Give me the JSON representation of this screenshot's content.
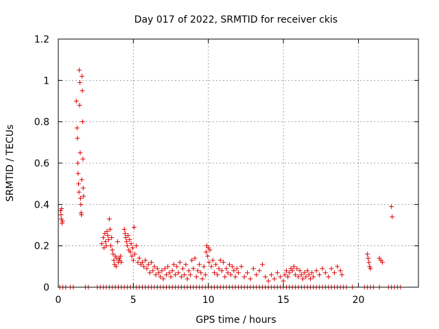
{
  "chart_data": {
    "type": "scatter",
    "title": "Day 017 of 2022, SRMTID for receiver ckis",
    "xlabel": "GPS time / hours",
    "ylabel": "SRMTID / TECUs",
    "xlim": [
      0,
      24
    ],
    "ylim": [
      0,
      1.2
    ],
    "x_ticks": [
      0,
      5,
      10,
      15,
      20
    ],
    "x_tick_labels": [
      "0",
      "5",
      "10",
      "15",
      "20"
    ],
    "y_ticks": [
      0,
      0.2,
      0.4,
      0.6,
      0.8,
      1.0,
      1.2
    ],
    "y_tick_labels": [
      "0",
      "0.2",
      "0.4",
      "0.6",
      "0.8",
      "1",
      "1.2"
    ],
    "grid": true,
    "marker": "+",
    "series": [
      {
        "name": "SRMTID",
        "color": "#dd0000",
        "points": [
          [
            0.15,
            0.37
          ],
          [
            0.18,
            0.35
          ],
          [
            0.2,
            0.33
          ],
          [
            0.22,
            0.38
          ],
          [
            0.25,
            0.31
          ],
          [
            0.28,
            0.32
          ],
          [
            1.2,
            0.9
          ],
          [
            1.25,
            0.77
          ],
          [
            1.28,
            0.72
          ],
          [
            1.3,
            0.6
          ],
          [
            1.32,
            0.55
          ],
          [
            1.35,
            0.5
          ],
          [
            1.38,
            0.46
          ],
          [
            1.4,
            1.05
          ],
          [
            1.42,
            0.88
          ],
          [
            1.44,
            0.99
          ],
          [
            1.46,
            0.65
          ],
          [
            1.48,
            0.43
          ],
          [
            1.5,
            0.4
          ],
          [
            1.52,
            0.36
          ],
          [
            1.54,
            0.35
          ],
          [
            1.56,
            0.52
          ],
          [
            1.58,
            1.02
          ],
          [
            1.6,
            0.95
          ],
          [
            1.62,
            0.8
          ],
          [
            1.64,
            0.62
          ],
          [
            1.66,
            0.48
          ],
          [
            1.68,
            0.44
          ],
          [
            2.9,
            0.21
          ],
          [
            3.0,
            0.24
          ],
          [
            3.05,
            0.19
          ],
          [
            3.1,
            0.26
          ],
          [
            3.15,
            0.22
          ],
          [
            3.2,
            0.2
          ],
          [
            3.25,
            0.27
          ],
          [
            3.3,
            0.25
          ],
          [
            3.35,
            0.23
          ],
          [
            3.4,
            0.33
          ],
          [
            3.45,
            0.28
          ],
          [
            3.5,
            0.2
          ],
          [
            3.55,
            0.24
          ],
          [
            3.6,
            0.18
          ],
          [
            3.65,
            0.16
          ],
          [
            3.7,
            0.13
          ],
          [
            3.75,
            0.11
          ],
          [
            3.8,
            0.15
          ],
          [
            3.85,
            0.1
          ],
          [
            3.9,
            0.14
          ],
          [
            3.95,
            0.22
          ],
          [
            4.0,
            0.12
          ],
          [
            4.05,
            0.14
          ],
          [
            4.1,
            0.13
          ],
          [
            4.15,
            0.15
          ],
          [
            4.2,
            0.12
          ],
          [
            4.4,
            0.28
          ],
          [
            4.45,
            0.26
          ],
          [
            4.5,
            0.24
          ],
          [
            4.55,
            0.22
          ],
          [
            4.6,
            0.2
          ],
          [
            4.65,
            0.25
          ],
          [
            4.7,
            0.18
          ],
          [
            4.75,
            0.23
          ],
          [
            4.8,
            0.17
          ],
          [
            4.85,
            0.21
          ],
          [
            4.9,
            0.15
          ],
          [
            4.95,
            0.19
          ],
          [
            5.0,
            0.13
          ],
          [
            5.05,
            0.29
          ],
          [
            5.1,
            0.16
          ],
          [
            5.2,
            0.2
          ],
          [
            5.3,
            0.12
          ],
          [
            5.4,
            0.14
          ],
          [
            5.5,
            0.11
          ],
          [
            5.6,
            0.12
          ],
          [
            5.7,
            0.1
          ],
          [
            5.8,
            0.13
          ],
          [
            5.9,
            0.09
          ],
          [
            6.0,
            0.11
          ],
          [
            6.1,
            0.07
          ],
          [
            6.2,
            0.12
          ],
          [
            6.3,
            0.08
          ],
          [
            6.4,
            0.1
          ],
          [
            6.5,
            0.06
          ],
          [
            6.6,
            0.09
          ],
          [
            6.7,
            0.07
          ],
          [
            6.8,
            0.05
          ],
          [
            6.9,
            0.08
          ],
          [
            7.0,
            0.04
          ],
          [
            7.1,
            0.09
          ],
          [
            7.2,
            0.06
          ],
          [
            7.3,
            0.1
          ],
          [
            7.4,
            0.07
          ],
          [
            7.5,
            0.05
          ],
          [
            7.6,
            0.08
          ],
          [
            7.7,
            0.11
          ],
          [
            7.8,
            0.06
          ],
          [
            7.9,
            0.1
          ],
          [
            8.0,
            0.07
          ],
          [
            8.1,
            0.12
          ],
          [
            8.2,
            0.05
          ],
          [
            8.3,
            0.09
          ],
          [
            8.4,
            0.06
          ],
          [
            8.5,
            0.11
          ],
          [
            8.6,
            0.04
          ],
          [
            8.7,
            0.08
          ],
          [
            8.8,
            0.06
          ],
          [
            8.9,
            0.13
          ],
          [
            9.0,
            0.09
          ],
          [
            9.1,
            0.14
          ],
          [
            9.2,
            0.05
          ],
          [
            9.3,
            0.08
          ],
          [
            9.4,
            0.11
          ],
          [
            9.5,
            0.07
          ],
          [
            9.6,
            0.04
          ],
          [
            9.7,
            0.1
          ],
          [
            9.8,
            0.06
          ],
          [
            9.85,
            0.17
          ],
          [
            9.9,
            0.2
          ],
          [
            9.95,
            0.15
          ],
          [
            10.0,
            0.19
          ],
          [
            10.05,
            0.12
          ],
          [
            10.1,
            0.18
          ],
          [
            10.2,
            0.1
          ],
          [
            10.3,
            0.13
          ],
          [
            10.4,
            0.07
          ],
          [
            10.5,
            0.11
          ],
          [
            10.6,
            0.06
          ],
          [
            10.7,
            0.09
          ],
          [
            10.8,
            0.13
          ],
          [
            10.9,
            0.08
          ],
          [
            11.0,
            0.12
          ],
          [
            11.1,
            0.05
          ],
          [
            11.2,
            0.09
          ],
          [
            11.3,
            0.07
          ],
          [
            11.4,
            0.11
          ],
          [
            11.5,
            0.06
          ],
          [
            11.6,
            0.1
          ],
          [
            11.7,
            0.08
          ],
          [
            11.8,
            0.05
          ],
          [
            11.9,
            0.09
          ],
          [
            12.0,
            0.07
          ],
          [
            12.2,
            0.1
          ],
          [
            12.4,
            0.05
          ],
          [
            12.6,
            0.07
          ],
          [
            12.8,
            0.04
          ],
          [
            13.0,
            0.09
          ],
          [
            13.2,
            0.06
          ],
          [
            13.4,
            0.08
          ],
          [
            13.6,
            0.11
          ],
          [
            13.8,
            0.05
          ],
          [
            14.0,
            0.03
          ],
          [
            14.2,
            0.06
          ],
          [
            14.4,
            0.04
          ],
          [
            14.6,
            0.07
          ],
          [
            14.8,
            0.05
          ],
          [
            15.0,
            0.03
          ],
          [
            15.1,
            0.06
          ],
          [
            15.2,
            0.08
          ],
          [
            15.3,
            0.05
          ],
          [
            15.4,
            0.07
          ],
          [
            15.5,
            0.09
          ],
          [
            15.6,
            0.08
          ],
          [
            15.7,
            0.1
          ],
          [
            15.8,
            0.06
          ],
          [
            15.9,
            0.09
          ],
          [
            16.0,
            0.05
          ],
          [
            16.1,
            0.08
          ],
          [
            16.2,
            0.06
          ],
          [
            16.3,
            0.04
          ],
          [
            16.4,
            0.07
          ],
          [
            16.5,
            0.05
          ],
          [
            16.6,
            0.08
          ],
          [
            16.7,
            0.06
          ],
          [
            16.8,
            0.04
          ],
          [
            16.9,
            0.07
          ],
          [
            17.0,
            0.05
          ],
          [
            17.2,
            0.08
          ],
          [
            17.4,
            0.06
          ],
          [
            17.6,
            0.09
          ],
          [
            17.8,
            0.07
          ],
          [
            18.0,
            0.05
          ],
          [
            18.2,
            0.09
          ],
          [
            18.4,
            0.07
          ],
          [
            18.6,
            0.1
          ],
          [
            18.8,
            0.08
          ],
          [
            18.9,
            0.06
          ],
          [
            20.6,
            0.16
          ],
          [
            20.65,
            0.14
          ],
          [
            20.7,
            0.12
          ],
          [
            20.75,
            0.1
          ],
          [
            20.8,
            0.09
          ],
          [
            21.4,
            0.14
          ],
          [
            21.5,
            0.13
          ],
          [
            21.6,
            0.12
          ],
          [
            22.2,
            0.39
          ],
          [
            22.25,
            0.34
          ],
          [
            0.1,
            0
          ],
          [
            0.3,
            0
          ],
          [
            0.5,
            0
          ],
          [
            0.8,
            0
          ],
          [
            1.0,
            0
          ],
          [
            1.8,
            0
          ],
          [
            2.0,
            0
          ],
          [
            2.6,
            0
          ],
          [
            2.8,
            0
          ],
          [
            3.0,
            0
          ],
          [
            3.2,
            0
          ],
          [
            3.4,
            0
          ],
          [
            3.6,
            0
          ],
          [
            3.8,
            0
          ],
          [
            4.0,
            0
          ],
          [
            4.2,
            0
          ],
          [
            4.4,
            0
          ],
          [
            4.6,
            0
          ],
          [
            4.8,
            0
          ],
          [
            5.0,
            0
          ],
          [
            5.2,
            0
          ],
          [
            5.4,
            0
          ],
          [
            5.6,
            0
          ],
          [
            5.8,
            0
          ],
          [
            6.0,
            0
          ],
          [
            6.2,
            0
          ],
          [
            6.4,
            0
          ],
          [
            6.6,
            0
          ],
          [
            6.8,
            0
          ],
          [
            7.0,
            0
          ],
          [
            7.2,
            0
          ],
          [
            7.4,
            0
          ],
          [
            7.6,
            0
          ],
          [
            7.8,
            0
          ],
          [
            8.0,
            0
          ],
          [
            8.2,
            0
          ],
          [
            8.4,
            0
          ],
          [
            8.6,
            0
          ],
          [
            8.8,
            0
          ],
          [
            9.0,
            0
          ],
          [
            9.2,
            0
          ],
          [
            9.4,
            0
          ],
          [
            9.6,
            0
          ],
          [
            9.8,
            0
          ],
          [
            10.0,
            0
          ],
          [
            10.2,
            0
          ],
          [
            10.4,
            0
          ],
          [
            10.6,
            0
          ],
          [
            10.8,
            0
          ],
          [
            11.0,
            0
          ],
          [
            11.2,
            0
          ],
          [
            11.4,
            0
          ],
          [
            11.6,
            0
          ],
          [
            11.8,
            0
          ],
          [
            12.0,
            0
          ],
          [
            12.2,
            0
          ],
          [
            12.4,
            0
          ],
          [
            12.6,
            0
          ],
          [
            12.8,
            0
          ],
          [
            13.0,
            0
          ],
          [
            13.2,
            0
          ],
          [
            13.4,
            0
          ],
          [
            13.6,
            0
          ],
          [
            13.8,
            0
          ],
          [
            14.0,
            0
          ],
          [
            14.2,
            0
          ],
          [
            14.4,
            0
          ],
          [
            14.6,
            0
          ],
          [
            14.8,
            0
          ],
          [
            15.0,
            0
          ],
          [
            15.2,
            0
          ],
          [
            15.4,
            0
          ],
          [
            15.6,
            0
          ],
          [
            15.8,
            0
          ],
          [
            16.0,
            0
          ],
          [
            16.2,
            0
          ],
          [
            16.4,
            0
          ],
          [
            16.6,
            0
          ],
          [
            16.8,
            0
          ],
          [
            17.0,
            0
          ],
          [
            17.2,
            0
          ],
          [
            17.4,
            0
          ],
          [
            17.6,
            0
          ],
          [
            17.8,
            0
          ],
          [
            18.0,
            0
          ],
          [
            18.2,
            0
          ],
          [
            18.4,
            0
          ],
          [
            18.6,
            0
          ],
          [
            18.8,
            0
          ],
          [
            19.0,
            0
          ],
          [
            19.2,
            0
          ],
          [
            19.6,
            0
          ],
          [
            20.4,
            0
          ],
          [
            20.6,
            0
          ],
          [
            20.8,
            0
          ],
          [
            21.0,
            0
          ],
          [
            21.4,
            0
          ],
          [
            22.0,
            0
          ],
          [
            22.2,
            0
          ],
          [
            22.4,
            0
          ],
          [
            22.6,
            0
          ],
          [
            22.8,
            0
          ]
        ]
      }
    ]
  }
}
